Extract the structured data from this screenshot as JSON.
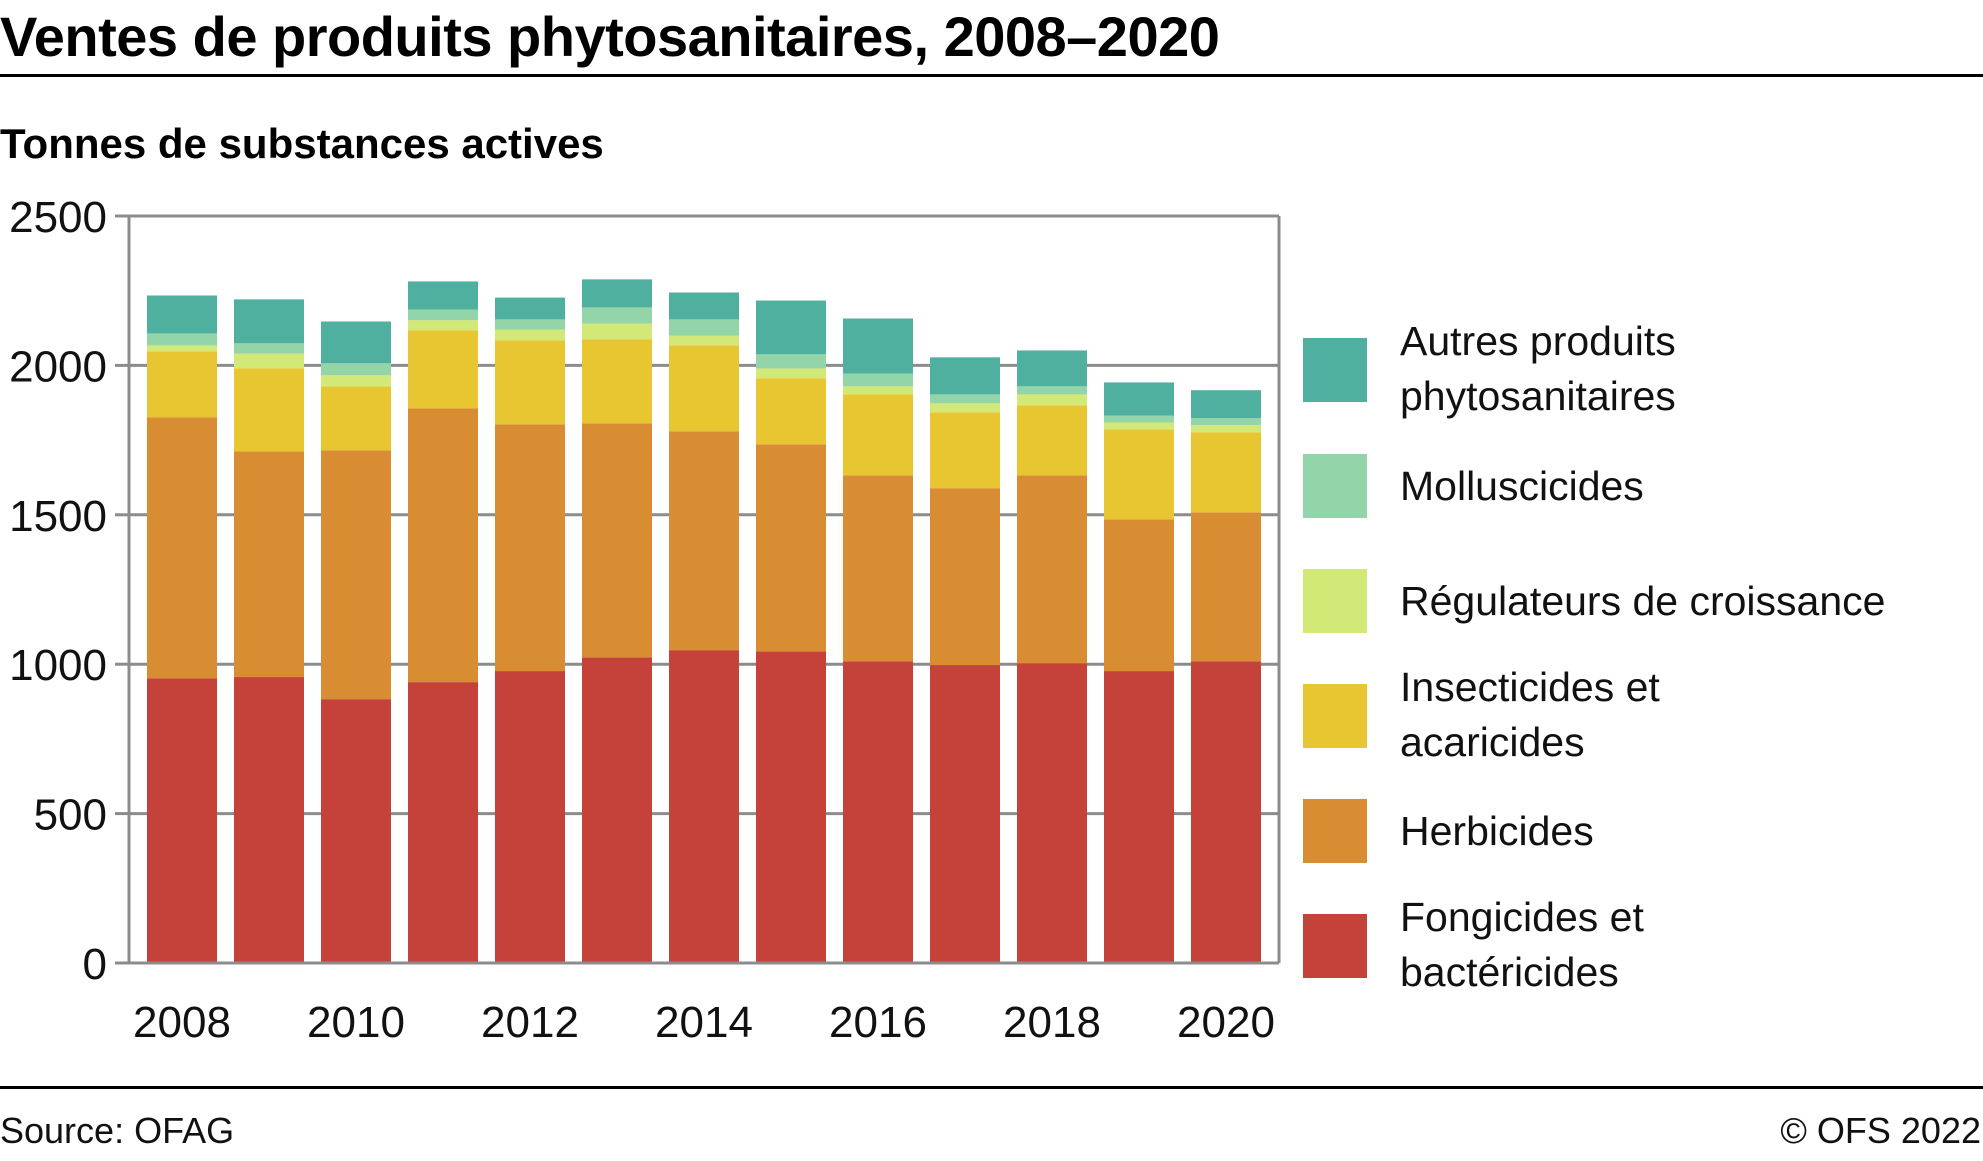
{
  "header": {
    "title": "Ventes de produits phytosanitaires, 2008–2020",
    "subtitle": "Tonnes de substances actives"
  },
  "footer": {
    "source": "Source: OFAG",
    "copyright": "© OFS 2022"
  },
  "chart_data": {
    "type": "bar",
    "stacked": true,
    "title": "Ventes de produits phytosanitaires, 2008–2020",
    "ylabel": "Tonnes de substances actives",
    "xlabel": "",
    "ylim": [
      0,
      2500
    ],
    "yticks": [
      0,
      500,
      1000,
      1500,
      2000,
      2500
    ],
    "grid": true,
    "legend_position": "right",
    "categories": [
      "2008",
      "2009",
      "2010",
      "2011",
      "2012",
      "2013",
      "2014",
      "2015",
      "2016",
      "2017",
      "2018",
      "2019",
      "2020"
    ],
    "xtick_labels": [
      "2008",
      "2010",
      "2012",
      "2014",
      "2016",
      "2018",
      "2020"
    ],
    "series": [
      {
        "name": "Fongicides et bactéricides",
        "color": "#c4423a",
        "values": [
          953,
          957,
          883,
          940,
          977,
          1023,
          1047,
          1043,
          1010,
          997,
          1003,
          977,
          1010
        ]
      },
      {
        "name": "Herbicides",
        "color": "#d98d33",
        "values": [
          873,
          755,
          833,
          916,
          826,
          783,
          732,
          693,
          622,
          592,
          629,
          508,
          498
        ]
      },
      {
        "name": "Insecticides et acaricides",
        "color": "#e8c632",
        "values": [
          221,
          278,
          214,
          261,
          281,
          281,
          288,
          221,
          271,
          254,
          234,
          301,
          268
        ]
      },
      {
        "name": "Régulateurs de croissance",
        "color": "#d2e978",
        "values": [
          20,
          50,
          37,
          34,
          36,
          53,
          33,
          33,
          27,
          30,
          37,
          23,
          24
        ]
      },
      {
        "name": "Molluscicides",
        "color": "#93d4a9",
        "values": [
          40,
          34,
          40,
          36,
          34,
          54,
          54,
          47,
          43,
          30,
          27,
          23,
          24
        ]
      },
      {
        "name": "Autres produits phytosanitaires",
        "color": "#4fb0a0",
        "values": [
          127,
          147,
          140,
          94,
          73,
          94,
          90,
          180,
          184,
          124,
          120,
          111,
          93
        ]
      }
    ],
    "legend": [
      {
        "label": "Autres produits\nphytosanitaires",
        "color": "#4fb0a0"
      },
      {
        "label": "Molluscicides",
        "color": "#93d4a9"
      },
      {
        "label": "Régulateurs de croissance",
        "color": "#d2e978"
      },
      {
        "label": "Insecticides et\nacaricides",
        "color": "#e8c632"
      },
      {
        "label": "Herbicides",
        "color": "#d98d33"
      },
      {
        "label": "Fongicides et\nbactéricides",
        "color": "#c4423a"
      }
    ]
  }
}
